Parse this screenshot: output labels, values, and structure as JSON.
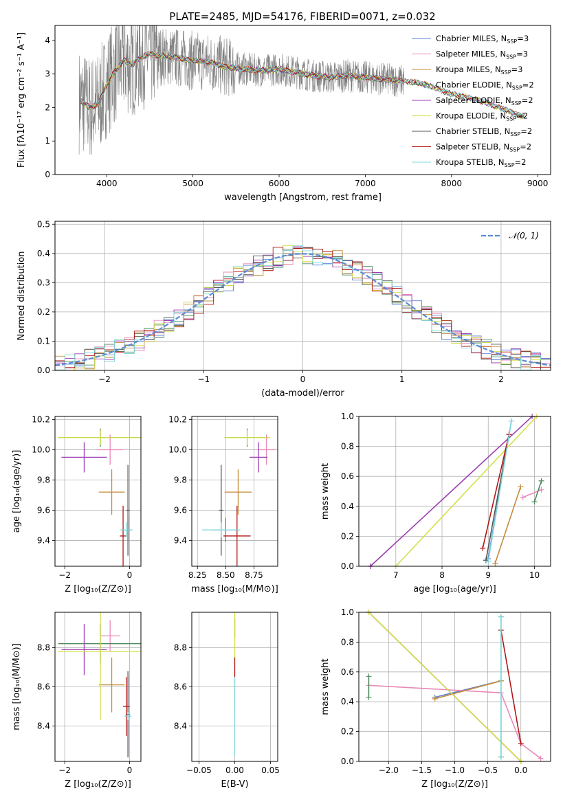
{
  "title": "PLATE=2485, MJD=54176, FIBERID=0071, z=0.032",
  "colors": {
    "Chabrier MILES": "#5b7fd6",
    "Salpeter MILES": "#e888b8",
    "Kroupa MILES": "#c48a3a",
    "Chabrier ELODIE": "#4e8a5c",
    "Salpeter ELODIE": "#9b3fb0",
    "Kroupa ELODIE": "#d4e04a",
    "Chabrier STELIB": "#555555",
    "Salpeter STELIB": "#b01818",
    "Kroupa STELIB": "#7fd8d8",
    "data": "#808080"
  },
  "spectrum_legend": [
    {
      "name": "Chabrier MILES",
      "label": "Chabrier MILES, N",
      "nssp": "=3"
    },
    {
      "name": "Salpeter MILES",
      "label": "Salpeter MILES, N",
      "nssp": "=3"
    },
    {
      "name": "Kroupa MILES",
      "label": "Kroupa MILES, N",
      "nssp": "=3"
    },
    {
      "name": "Chabrier ELODIE",
      "label": "Chabrier ELODIE, N",
      "nssp": "=2"
    },
    {
      "name": "Salpeter ELODIE",
      "label": "Salpeter ELODIE, N",
      "nssp": "=2"
    },
    {
      "name": "Kroupa ELODIE",
      "label": "Kroupa ELODIE, N",
      "nssp": "=2"
    },
    {
      "name": "Chabrier STELIB",
      "label": "Chabrier STELIB, N",
      "nssp": "=2"
    },
    {
      "name": "Salpeter STELIB",
      "label": "Salpeter STELIB, N",
      "nssp": "=2"
    },
    {
      "name": "Kroupa STELIB",
      "label": "Kroupa STELIB, N",
      "nssp": "=2"
    }
  ],
  "nssp_subscript": "SSP",
  "chart_data": [
    {
      "id": "spectrum",
      "type": "line",
      "xlabel": "wavelength [Angstrom, rest frame]",
      "ylabel": "Flux [fλ10⁻¹⁷ erg cm⁻² s⁻¹ A⁻¹]",
      "xlim": [
        3400,
        9150
      ],
      "ylim": [
        0,
        4.45
      ],
      "xticks": [
        4000,
        5000,
        6000,
        7000,
        8000,
        9000
      ],
      "yticks": [
        0,
        1,
        2,
        3,
        4
      ],
      "grid": false,
      "legend": "top-right",
      "model_continuum": {
        "x": [
          3700,
          3800,
          3900,
          4000,
          4100,
          4200,
          4300,
          4400,
          4500,
          4600,
          4800,
          5000,
          5200,
          5400,
          5600,
          5800,
          6000,
          6200,
          6400,
          6600,
          6800,
          7000,
          7200,
          7400,
          7600,
          7800,
          8000,
          8200,
          8400,
          8600,
          8800
        ],
        "y": [
          2.2,
          2.0,
          2.1,
          2.7,
          3.1,
          3.4,
          3.3,
          3.5,
          3.6,
          3.55,
          3.5,
          3.4,
          3.35,
          3.2,
          3.15,
          3.1,
          3.15,
          3.05,
          2.95,
          2.9,
          2.95,
          2.9,
          2.85,
          2.8,
          2.75,
          2.6,
          2.4,
          2.3,
          2.15,
          1.95,
          1.75
        ]
      },
      "data_range": [
        3680,
        7450
      ]
    },
    {
      "id": "residuals",
      "type": "line",
      "xlabel": "(data-model)/error",
      "ylabel": "Normed distribution",
      "xlim": [
        -2.5,
        2.5
      ],
      "ylim": [
        0,
        0.51
      ],
      "xticks": [
        -2,
        -1,
        0,
        1,
        2
      ],
      "yticks": [
        0.0,
        0.1,
        0.2,
        0.3,
        0.4,
        0.5
      ],
      "grid": true,
      "legend": "top-right",
      "series": [
        {
          "name": "𝒩(0, 1)",
          "style": "dashed"
        }
      ]
    },
    {
      "id": "age-vs-Z",
      "type": "scatter",
      "xlabel": "Z [log₁₀(Z/Z⊙)]",
      "ylabel": "age  [log₁₀(age/yr)]",
      "xlim": [
        -2.3,
        0.35
      ],
      "ylim": [
        9.23,
        10.22
      ],
      "xticks": [
        -2,
        0
      ],
      "yticks": [
        9.4,
        9.6,
        9.8,
        10.0,
        10.2
      ],
      "grid": true,
      "points": [
        {
          "model": "Chabrier MILES",
          "x": -0.05,
          "y": 9.47,
          "xerr": 0.1,
          "yerr": 0.08
        },
        {
          "model": "Salpeter MILES",
          "x": -0.6,
          "y": 10.0,
          "xerr": 0.4,
          "yerr": 0.1
        },
        {
          "model": "Kroupa MILES",
          "x": -0.55,
          "y": 9.72,
          "xerr": 0.4,
          "yerr": 0.15
        },
        {
          "model": "Chabrier ELODIE",
          "x": -0.9,
          "y": 10.08,
          "xerr": 1.3,
          "yerr": 0.06
        },
        {
          "model": "Salpeter ELODIE",
          "x": -1.4,
          "y": 9.95,
          "xerr": 0.7,
          "yerr": 0.1
        },
        {
          "model": "Kroupa ELODIE",
          "x": -0.9,
          "y": 10.08,
          "xerr": 1.3,
          "yerr": 0.05
        },
        {
          "model": "Chabrier STELIB",
          "x": -0.05,
          "y": 9.6,
          "xerr": 0.05,
          "yerr": 0.3
        },
        {
          "model": "Salpeter STELIB",
          "x": -0.2,
          "y": 9.43,
          "xerr": 0.1,
          "yerr": 0.2
        },
        {
          "model": "Kroupa STELIB",
          "x": -0.1,
          "y": 9.47,
          "xerr": 0.2,
          "yerr": 0.05
        }
      ]
    },
    {
      "id": "age-vs-mass",
      "type": "scatter",
      "xlabel": "mass [log₁₀(M/M⊙)]",
      "ylabel": "",
      "xlim": [
        8.2,
        8.96
      ],
      "ylim": [
        9.23,
        10.22
      ],
      "xticks": [
        8.25,
        8.5,
        8.75
      ],
      "yticks": [
        9.4,
        9.6,
        9.8,
        10.0,
        10.2
      ],
      "grid": true,
      "points": [
        {
          "model": "Chabrier MILES",
          "x": 8.5,
          "y": 9.47,
          "xerr": 0.12,
          "yerr": 0.08
        },
        {
          "model": "Salpeter MILES",
          "x": 8.86,
          "y": 10.0,
          "xerr": 0.08,
          "yerr": 0.1
        },
        {
          "model": "Kroupa MILES",
          "x": 8.61,
          "y": 9.72,
          "xerr": 0.12,
          "yerr": 0.15
        },
        {
          "model": "Chabrier ELODIE",
          "x": 8.69,
          "y": 10.08,
          "xerr": 0.2,
          "yerr": 0.06
        },
        {
          "model": "Salpeter ELODIE",
          "x": 8.79,
          "y": 9.95,
          "xerr": 0.08,
          "yerr": 0.1
        },
        {
          "model": "Kroupa ELODIE",
          "x": 8.69,
          "y": 10.08,
          "xerr": 0.2,
          "yerr": 0.05
        },
        {
          "model": "Chabrier STELIB",
          "x": 8.46,
          "y": 9.6,
          "xerr": 0.02,
          "yerr": 0.3
        },
        {
          "model": "Salpeter STELIB",
          "x": 8.6,
          "y": 9.43,
          "xerr": 0.12,
          "yerr": 0.2
        },
        {
          "model": "Kroupa STELIB",
          "x": 8.46,
          "y": 9.47,
          "xerr": 0.17,
          "yerr": 0.05
        }
      ]
    },
    {
      "id": "mass-weight-vs-age",
      "type": "line",
      "xlabel": "age  [log₁₀(age/yr)]",
      "ylabel": "mass weight",
      "xlim": [
        6.2,
        10.35
      ],
      "ylim": [
        0,
        1.0
      ],
      "xticks": [
        6,
        7,
        8,
        9,
        10
      ],
      "yticks": [
        0.0,
        0.2,
        0.4,
        0.6,
        0.8,
        1.0
      ],
      "grid": true,
      "series": [
        {
          "model": "Chabrier MILES",
          "x": [
            9.0,
            9.5
          ],
          "y": [
            0.05,
            0.97
          ]
        },
        {
          "model": "Salpeter MILES",
          "x": [
            9.75,
            10.15
          ],
          "y": [
            0.46,
            0.51
          ]
        },
        {
          "model": "Kroupa MILES",
          "x": [
            9.15,
            9.7
          ],
          "y": [
            0.02,
            0.53
          ]
        },
        {
          "model": "Chabrier ELODIE",
          "x": [
            10.0,
            10.15
          ],
          "y": [
            0.43,
            0.57
          ]
        },
        {
          "model": "Salpeter ELODIE",
          "x": [
            6.45,
            9.95
          ],
          "y": [
            0.0,
            1.0
          ]
        },
        {
          "model": "Kroupa ELODIE",
          "x": [
            7.0,
            10.05
          ],
          "y": [
            0.0,
            1.0
          ]
        },
        {
          "model": "Chabrier STELIB",
          "x": [
            8.95,
            9.45
          ],
          "y": [
            0.04,
            0.88
          ]
        },
        {
          "model": "Salpeter STELIB",
          "x": [
            8.88,
            9.45
          ],
          "y": [
            0.12,
            0.88
          ]
        },
        {
          "model": "Kroupa STELIB",
          "x": [
            9.0,
            9.5
          ],
          "y": [
            0.03,
            0.97
          ]
        }
      ]
    },
    {
      "id": "mass-vs-Z",
      "type": "scatter",
      "xlabel": "Z [log₁₀(Z/Z⊙)]",
      "ylabel": "mass [log₁₀(M/M⊙)]",
      "xlim": [
        -2.3,
        0.35
      ],
      "ylim": [
        8.22,
        8.98
      ],
      "xticks": [
        -2,
        0
      ],
      "yticks": [
        8.4,
        8.6,
        8.8
      ],
      "grid": true,
      "points": [
        {
          "model": "Chabrier MILES",
          "x": -0.05,
          "y": 8.45,
          "xerr": 0.1,
          "yerr": 0.2
        },
        {
          "model": "Salpeter MILES",
          "x": -0.6,
          "y": 8.86,
          "xerr": 0.3,
          "yerr": 0.08
        },
        {
          "model": "Kroupa MILES",
          "x": -0.55,
          "y": 8.61,
          "xerr": 0.4,
          "yerr": 0.14
        },
        {
          "model": "Chabrier ELODIE",
          "x": -0.9,
          "y": 8.82,
          "xerr": 1.3,
          "yerr": 0.1
        },
        {
          "model": "Salpeter ELODIE",
          "x": -1.4,
          "y": 8.79,
          "xerr": 0.7,
          "yerr": 0.13
        },
        {
          "model": "Kroupa ELODIE",
          "x": -0.9,
          "y": 8.78,
          "xerr": 1.3,
          "yerr": 0.35
        },
        {
          "model": "Chabrier STELIB",
          "x": -0.05,
          "y": 8.46,
          "xerr": 0.05,
          "yerr": 0.22
        },
        {
          "model": "Salpeter STELIB",
          "x": -0.1,
          "y": 8.5,
          "xerr": 0.1,
          "yerr": 0.15
        },
        {
          "model": "Kroupa STELIB",
          "x": -0.05,
          "y": 8.45,
          "xerr": 0.1,
          "yerr": 0.02
        }
      ]
    },
    {
      "id": "mass-vs-EBV",
      "type": "scatter",
      "xlabel": "E(B-V)",
      "ylabel": "",
      "xlim": [
        -0.06,
        0.06
      ],
      "ylim": [
        8.22,
        8.98
      ],
      "xticks": [
        -0.05,
        0.0,
        0.05
      ],
      "yticks": [
        8.4,
        8.6,
        8.8
      ],
      "grid": true,
      "points": [
        {
          "model": "Salpeter ELODIE",
          "x": 0.0,
          "y": 8.9,
          "xerr": 0,
          "yerr": 0.05
        },
        {
          "model": "Kroupa ELODIE",
          "x": 0.0,
          "y": 8.78,
          "xerr": 0,
          "yerr": 0.3
        },
        {
          "model": "Salpeter STELIB",
          "x": 0.0,
          "y": 8.7,
          "xerr": 0,
          "yerr": 0.05
        },
        {
          "model": "Kroupa STELIB",
          "x": 0.0,
          "y": 8.45,
          "xerr": 0,
          "yerr": 0.2
        }
      ]
    },
    {
      "id": "mass-weight-vs-Z",
      "type": "line",
      "xlabel": "Z [log₁₀(Z/Z⊙)]",
      "ylabel": "mass weight",
      "xlim": [
        -2.45,
        0.45
      ],
      "ylim": [
        0,
        1.0
      ],
      "xticks": [
        -2.0,
        -1.5,
        -1.0,
        -0.5,
        0.0
      ],
      "yticks": [
        0.0,
        0.2,
        0.4,
        0.6,
        0.8,
        1.0
      ],
      "grid": true,
      "series": [
        {
          "model": "Chabrier MILES",
          "x": [
            -1.3,
            -0.3
          ],
          "y": [
            0.43,
            0.54
          ]
        },
        {
          "model": "Salpeter MILES",
          "x": [
            -2.3,
            -0.3,
            0.0,
            0.3
          ],
          "y": [
            0.51,
            0.46,
            0.12,
            0.02
          ]
        },
        {
          "model": "Kroupa MILES",
          "x": [
            -1.3,
            -0.3
          ],
          "y": [
            0.42,
            0.54
          ]
        },
        {
          "model": "Chabrier ELODIE",
          "x": [
            -2.3,
            -2.3
          ],
          "y": [
            0.43,
            0.57
          ]
        },
        {
          "model": "Salpeter ELODIE",
          "x": [
            -2.3,
            0.0
          ],
          "y": [
            1.0,
            0.0
          ]
        },
        {
          "model": "Kroupa ELODIE",
          "x": [
            -2.3,
            0.0
          ],
          "y": [
            1.0,
            0.0
          ]
        },
        {
          "model": "Chabrier STELIB",
          "x": [
            -0.3,
            -0.3
          ],
          "y": [
            0.03,
            0.97
          ]
        },
        {
          "model": "Salpeter STELIB",
          "x": [
            -0.3,
            0.0
          ],
          "y": [
            0.88,
            0.12
          ]
        },
        {
          "model": "Kroupa STELIB",
          "x": [
            -0.3,
            -0.3
          ],
          "y": [
            0.03,
            0.97
          ]
        }
      ]
    }
  ]
}
